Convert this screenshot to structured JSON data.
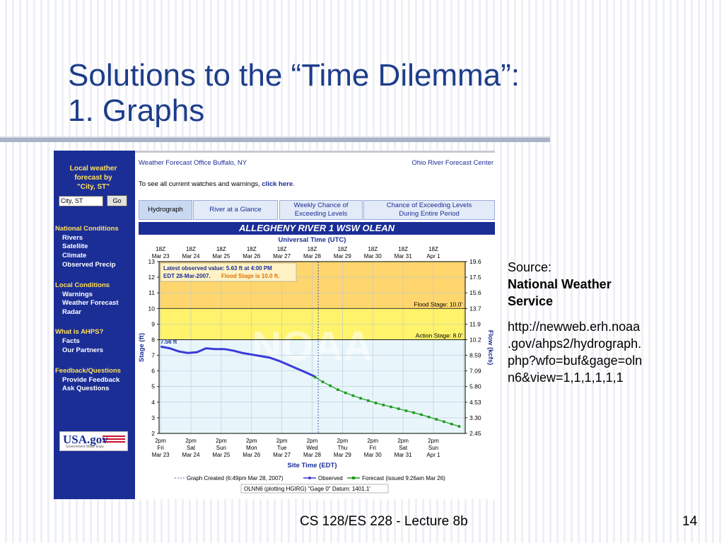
{
  "slide": {
    "title_line1": "Solutions to the “Time Dilemma”:",
    "title_line2": "1. Graphs",
    "source_label": "Source:",
    "source_name_1": "National Weather",
    "source_name_2": "Service",
    "url_lines": [
      "http://newweb.erh.noaa",
      ".gov/ahps2/hydrograph.",
      "php?wfo=buf&gage=oln",
      "n6&view=1,1,1,1,1,1"
    ],
    "footer": "CS 128/ES 228 - Lecture 8b",
    "page_number": "14"
  },
  "sidebar": {
    "header_lines": [
      "Local weather",
      "forecast by",
      "\"City, ST\""
    ],
    "search_value": "City, ST",
    "go_label": "Go",
    "sections": [
      {
        "title": "National Conditions",
        "items": [
          "Rivers",
          "Satellite",
          "Climate",
          "Observed Precip"
        ]
      },
      {
        "title": "Local Conditions",
        "items": [
          "Warnings",
          "Weather Forecast",
          "Radar"
        ]
      },
      {
        "title": "What is AHPS?",
        "items": [
          "Facts",
          "Our Partners"
        ]
      },
      {
        "title": "Feedback/Questions",
        "items": [
          "Provide Feedback",
          "Ask Questions"
        ]
      }
    ],
    "usagov_text": "USA.gov",
    "usagov_sub": "Government Made Easy"
  },
  "header": {
    "wfo_link": "Weather Forecast Office Buffalo, NY",
    "rfc_link": "Ohio River Forecast Center",
    "warn_text": "To see all current watches and warnings, ",
    "warn_link": "click here",
    "warn_end": "."
  },
  "tabs": [
    {
      "label": "Hydrograph",
      "active": true
    },
    {
      "label": "River at a Glance",
      "active": false
    },
    {
      "label_lines": [
        "Weekly Chance of",
        "Exceeding Levels"
      ],
      "active": false
    },
    {
      "label_lines": [
        "Chance of Exceeding Levels",
        "During Entire Period"
      ],
      "active": false
    }
  ],
  "chart_data": {
    "type": "line",
    "title": "ALLEGHENY RIVER 1 WSW OLEAN",
    "top_axis_title": "Universal Time (UTC)",
    "top_ticks": [
      [
        "18Z",
        "Mar 23"
      ],
      [
        "18Z",
        "Mar 24"
      ],
      [
        "18Z",
        "Mar 25"
      ],
      [
        "18Z",
        "Mar 26"
      ],
      [
        "18Z",
        "Mar 27"
      ],
      [
        "18Z",
        "Mar 28"
      ],
      [
        "18Z",
        "Mar 29"
      ],
      [
        "18Z",
        "Mar 30"
      ],
      [
        "18Z",
        "Mar 31"
      ],
      [
        "18Z",
        "Apr 1"
      ]
    ],
    "bottom_axis_title": "Site Time (EDT)",
    "bottom_ticks": [
      [
        "2pm",
        "Fri",
        "Mar 23"
      ],
      [
        "2pm",
        "Sat",
        "Mar 24"
      ],
      [
        "2pm",
        "Sun",
        "Mar 25"
      ],
      [
        "2pm",
        "Mon",
        "Mar 26"
      ],
      [
        "2pm",
        "Tue",
        "Mar 27"
      ],
      [
        "2pm",
        "Wed",
        "Mar 28"
      ],
      [
        "2pm",
        "Thu",
        "Mar 29"
      ],
      [
        "2pm",
        "Fri",
        "Mar 30"
      ],
      [
        "2pm",
        "Sat",
        "Mar 31"
      ],
      [
        "2pm",
        "Sun",
        "Apr 1"
      ]
    ],
    "ylabel": "Stage (ft)",
    "ylim": [
      2,
      13
    ],
    "yticks": [
      2,
      3,
      4,
      5,
      6,
      7,
      8,
      9,
      10,
      11,
      12,
      13
    ],
    "y2label": "Flow (kcfs)",
    "y2ticks": [
      [
        "2.45",
        2
      ],
      [
        "3.30",
        3
      ],
      [
        "4.53",
        4
      ],
      [
        "5.80",
        5
      ],
      [
        "7.09",
        6
      ],
      [
        "8.59",
        7
      ],
      [
        "10.2",
        8
      ],
      [
        "11.9",
        9
      ],
      [
        "13.7",
        10
      ],
      [
        "15.6",
        11
      ],
      [
        "17.5",
        12
      ],
      [
        "19.6",
        13
      ]
    ],
    "xlim": [
      -0.05,
      10.05
    ],
    "flood_stage": 10.0,
    "flood_label": "Flood Stage: 10.0'",
    "action_stage": 8.0,
    "action_label": "Action Stage: 8.0'",
    "graph_created_x": 5.2,
    "callout_lines": [
      "Latest observed value: 5.63 ft at 4:00 PM",
      "EDT 28-Mar-2007. ",
      "Flood Stage is 10.0 ft."
    ],
    "max_label": "7.56 ft",
    "series": [
      {
        "name": "Observed",
        "color": "#3b3bd8",
        "x": [
          0,
          0.3,
          0.6,
          0.9,
          1.2,
          1.5,
          1.8,
          2.1,
          2.4,
          2.7,
          3.0,
          3.3,
          3.6,
          3.9,
          4.2,
          4.5,
          4.8,
          5.1
        ],
        "y": [
          7.56,
          7.45,
          7.25,
          7.15,
          7.2,
          7.45,
          7.4,
          7.4,
          7.3,
          7.15,
          7.05,
          6.95,
          6.85,
          6.65,
          6.4,
          6.15,
          5.9,
          5.63
        ]
      },
      {
        "name": "Forecast (issued 9:26am Mar 26)",
        "color": "#1c9a1c",
        "x": [
          5.1,
          5.35,
          5.6,
          5.85,
          6.1,
          6.35,
          6.6,
          6.85,
          7.1,
          7.35,
          7.6,
          7.85,
          8.1,
          8.35,
          8.6,
          8.85,
          9.1,
          9.35,
          9.6,
          9.85
        ],
        "y": [
          5.6,
          5.3,
          5.05,
          4.8,
          4.6,
          4.42,
          4.25,
          4.1,
          3.95,
          3.82,
          3.7,
          3.58,
          3.45,
          3.33,
          3.2,
          3.05,
          2.9,
          2.75,
          2.6,
          2.45
        ]
      }
    ],
    "legend": {
      "created": "Graph Created (6:49pm Mar 28, 2007)",
      "observed": "Observed",
      "forecast": "Forecast (issued 9:26am Mar 26)"
    },
    "gage_box": "OLNN6 (plotting HGIRG) \"Gage 0\" Datum: 1401.1'",
    "watermark": "NOAA",
    "colors": {
      "flood_band": "#ffd66e",
      "action_band": "#fff36b",
      "normal_band": "#e8f6fb",
      "axis": "#000000"
    }
  }
}
